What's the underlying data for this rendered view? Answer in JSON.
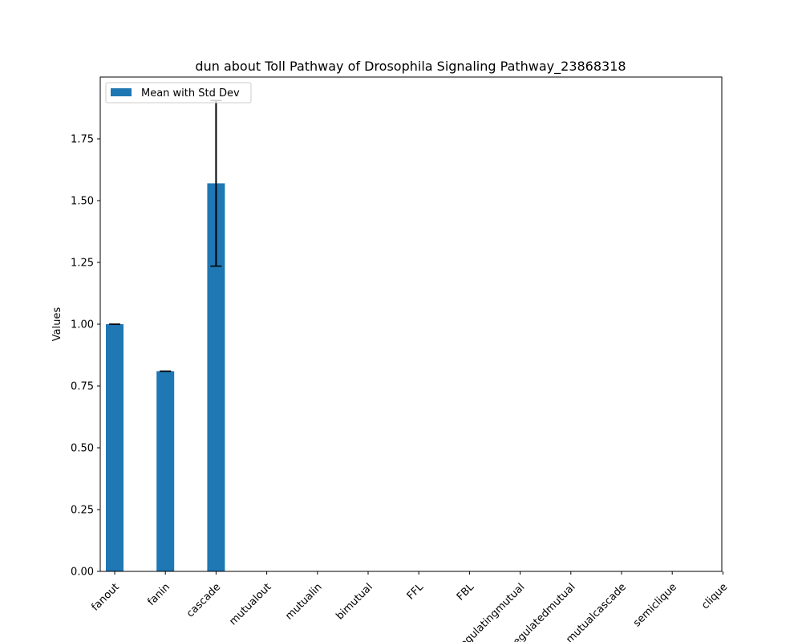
{
  "chart_data": {
    "type": "bar",
    "title": "dun about Toll Pathway of Drosophila Signaling Pathway_23868318",
    "xlabel": "",
    "ylabel": "Values",
    "categories": [
      "fanout",
      "fanin",
      "cascade",
      "mutualout",
      "mutualin",
      "bimutual",
      "FFL",
      "FBL",
      "regulatingmutual",
      "regulatedmutual",
      "mutualcascade",
      "semiclique",
      "clique"
    ],
    "series": [
      {
        "name": "Mean with Std Dev",
        "values": [
          1.0,
          0.81,
          1.57,
          0,
          0,
          0,
          0,
          0,
          0,
          0,
          0,
          0,
          0
        ],
        "errors": [
          0.0,
          0.0,
          0.335,
          0,
          0,
          0,
          0,
          0,
          0,
          0,
          0,
          0,
          0
        ]
      }
    ],
    "ylim": [
      0,
      2.0
    ],
    "yticks": [
      "0.00",
      "0.25",
      "0.50",
      "0.75",
      "1.00",
      "1.25",
      "1.50",
      "1.75"
    ],
    "legend_position": "top-left",
    "grid": false,
    "colors": {
      "bar": "#1f77b4",
      "error": "#000000"
    }
  }
}
